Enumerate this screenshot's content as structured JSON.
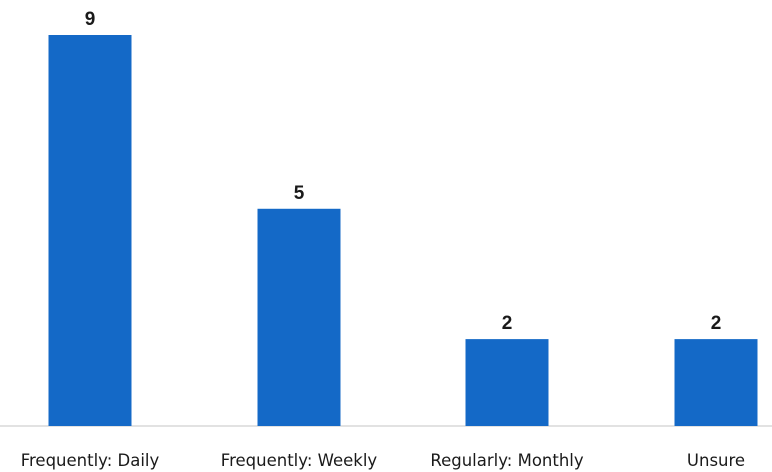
{
  "chart_data": {
    "type": "bar",
    "categories": [
      "Frequently: Daily",
      "Frequently: Weekly",
      "Regularly: Monthly",
      "Unsure"
    ],
    "values": [
      9,
      5,
      2,
      2
    ],
    "data_labels": [
      "9",
      "5",
      "2",
      "2"
    ],
    "ylim": [
      0,
      9
    ],
    "grid": false,
    "legend": "none",
    "bar_color": "#1469c7",
    "axis_color": "#d9d9d9"
  }
}
